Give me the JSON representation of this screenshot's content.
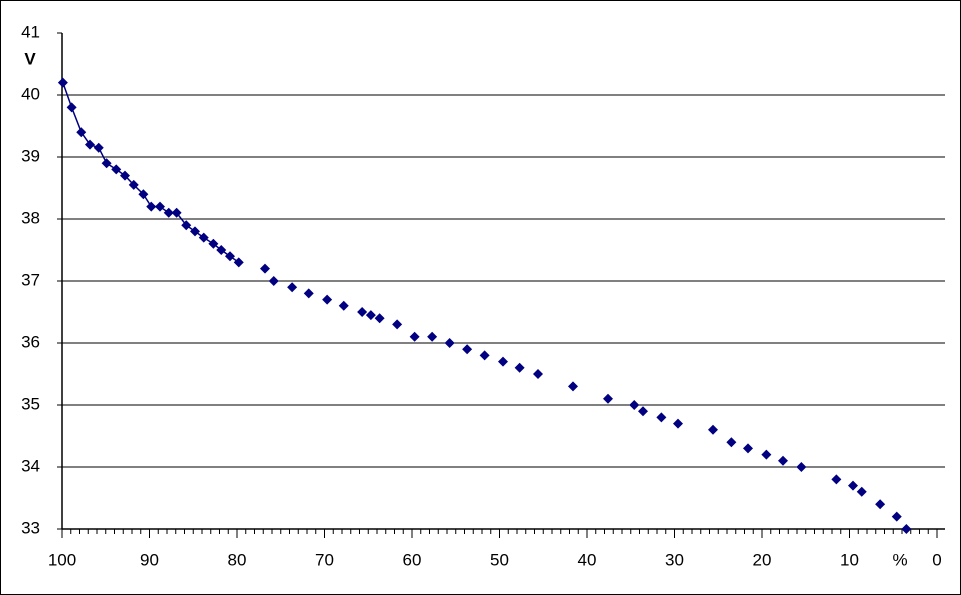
{
  "chart_data": {
    "type": "scatter",
    "y_label": "V",
    "x_label": "%",
    "xlim": [
      100,
      0
    ],
    "xticks": [
      100,
      90,
      80,
      70,
      60,
      50,
      40,
      30,
      20,
      10,
      0
    ],
    "x_minor_step": 1,
    "ylim": [
      33,
      41
    ],
    "yticks": [
      33,
      34,
      35,
      36,
      37,
      38,
      39,
      40,
      41
    ],
    "grid": true,
    "series": [
      {
        "color": "#000080",
        "line": true,
        "x": [
          99.9,
          98.9,
          97.8,
          96.8,
          95.8,
          94.9,
          93.8,
          92.8,
          91.8,
          90.7,
          89.8,
          88.8,
          87.8,
          86.9,
          85.8,
          84.8,
          83.8,
          82.7,
          81.8,
          80.8,
          79.8
        ],
        "values": [
          40.2,
          39.8,
          39.4,
          39.2,
          39.15,
          38.9,
          38.8,
          38.7,
          38.55,
          38.4,
          38.2,
          38.2,
          38.1,
          38.1,
          37.9,
          37.8,
          37.7,
          37.6,
          37.5,
          37.4,
          37.3
        ]
      },
      {
        "color": "#000080",
        "line": false,
        "x": [
          76.8,
          75.8,
          73.7,
          71.8,
          69.7,
          67.8,
          65.7,
          64.7,
          63.7,
          61.7,
          59.7,
          57.7,
          55.7,
          53.7,
          51.7,
          49.6,
          47.7,
          45.6,
          41.6,
          37.6,
          34.6,
          33.6,
          31.5,
          29.6,
          25.6,
          23.5,
          21.6,
          19.5,
          17.6,
          15.5,
          11.5,
          9.6,
          8.6,
          6.5,
          4.6,
          3.5
        ],
        "values": [
          37.2,
          37.0,
          36.9,
          36.8,
          36.7,
          36.6,
          36.5,
          36.45,
          36.4,
          36.3,
          36.1,
          36.1,
          36.0,
          35.9,
          35.8,
          35.7,
          35.6,
          35.5,
          35.3,
          35.1,
          35.0,
          34.9,
          34.8,
          34.7,
          34.6,
          34.4,
          34.3,
          34.2,
          34.1,
          34.0,
          33.8,
          33.7,
          33.6,
          33.4,
          33.2,
          33.0
        ]
      }
    ]
  }
}
